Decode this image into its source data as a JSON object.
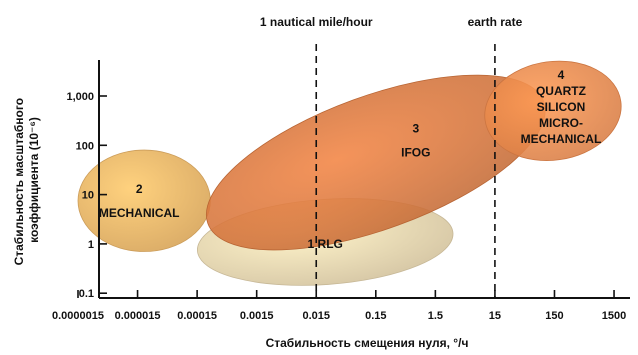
{
  "chart_data": {
    "type": "scatter",
    "title": "",
    "xlabel": "Стабильность смещения нуля, °/ч",
    "ylabel_lines": [
      "Стабильность масштабного",
      "коэффициента (10⁻⁶)"
    ],
    "x_scale": "log",
    "y_scale": "log",
    "x_ticks": [
      "0.0000015",
      "0.000015",
      "0.00015",
      "0.0015",
      "0.015",
      "0.15",
      "1.5",
      "15",
      "150",
      "1500"
    ],
    "y_ticks": [
      "0.1",
      "1",
      "10",
      "100",
      "1,000"
    ],
    "reference_lines": [
      {
        "label": "1 nautical mile/hour",
        "x": 0.015
      },
      {
        "label": "earth rate",
        "x": 15
      }
    ],
    "regions": [
      {
        "id": "rlg",
        "number": "1",
        "name_lines": [
          "RLG"
        ],
        "x_range": [
          0.00015,
          3
        ],
        "y_range": [
          0.15,
          8
        ],
        "color": "#ead9b2"
      },
      {
        "id": "mechanical",
        "number": "2",
        "name_lines": [
          "MECHANICAL"
        ],
        "x_range": [
          1.5e-06,
          0.00025
        ],
        "y_range": [
          0.7,
          80
        ],
        "color": "#f0b96a"
      },
      {
        "id": "ifog",
        "number": "3",
        "name_lines": [
          "IFOG"
        ],
        "x_range": [
          0.00015,
          150
        ],
        "y_range": [
          2,
          1000
        ],
        "color": "#d9773d"
      },
      {
        "id": "quartz",
        "number": "4",
        "name_lines": [
          "QUARTZ",
          "SILICON",
          "MICRO-",
          "MECHANICAL"
        ],
        "x_range": [
          10,
          2000
        ],
        "y_range": [
          50,
          5000
        ],
        "color": "#ef8a4c"
      }
    ]
  }
}
